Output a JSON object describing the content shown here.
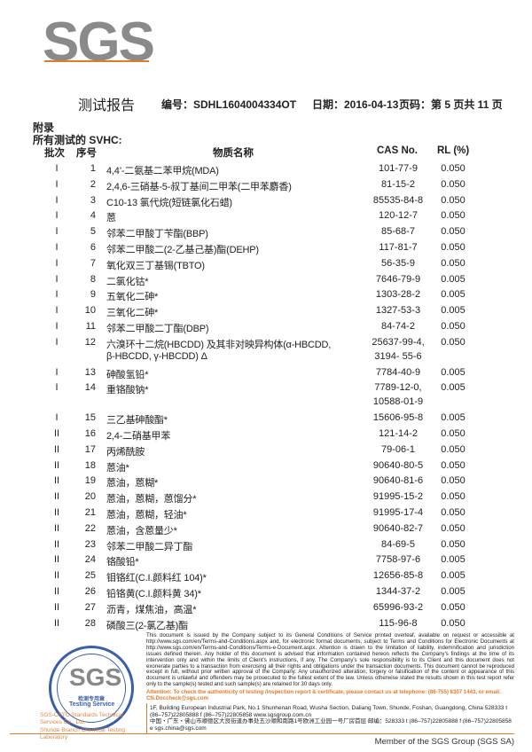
{
  "header": {
    "logo": "SGS",
    "title": "测试报告",
    "report_no": "编号：SDHL1604004334OT",
    "date": "日期：2016-04-13",
    "page": "页码：第 5 页共 11 页"
  },
  "section": {
    "appendix": "附录",
    "subtitle": "所有测试的 SVHC:"
  },
  "table": {
    "columns": [
      "批次",
      "序号",
      "物质名称",
      "CAS No.",
      "RL (%)"
    ],
    "rows": [
      {
        "batch": "I",
        "no": "1",
        "name": [
          "4,4’-二氨基二苯甲烷(MDA)"
        ],
        "cas": [
          "101-77-9"
        ],
        "rl": "0.050"
      },
      {
        "batch": "I",
        "no": "2",
        "name": [
          "2,4,6-三硝基-5-叔丁基间二甲苯(二甲苯麝香)"
        ],
        "cas": [
          "81-15-2"
        ],
        "rl": "0.050"
      },
      {
        "batch": "I",
        "no": "3",
        "name": [
          "C10-13 氯代烷(短链氯化石蜡)"
        ],
        "cas": [
          "85535-84-8"
        ],
        "rl": "0.050"
      },
      {
        "batch": "I",
        "no": "4",
        "name": [
          "蒽"
        ],
        "cas": [
          "120-12-7"
        ],
        "rl": "0.050"
      },
      {
        "batch": "I",
        "no": "5",
        "name": [
          "邻苯二甲酸丁苄酯(BBP)"
        ],
        "cas": [
          "85-68-7"
        ],
        "rl": "0.050"
      },
      {
        "batch": "I",
        "no": "6",
        "name": [
          "邻苯二甲酸二(2-乙基己基)酯(DEHP)"
        ],
        "cas": [
          "117-81-7"
        ],
        "rl": "0.050"
      },
      {
        "batch": "I",
        "no": "7",
        "name": [
          "氧化双三丁基锡(TBTO)"
        ],
        "cas": [
          "56-35-9"
        ],
        "rl": "0.050"
      },
      {
        "batch": "I",
        "no": "8",
        "name": [
          "二氯化钴*"
        ],
        "cas": [
          "7646-79-9"
        ],
        "rl": "0.005"
      },
      {
        "batch": "I",
        "no": "9",
        "name": [
          "五氧化二砷*"
        ],
        "cas": [
          "1303-28-2"
        ],
        "rl": "0.005"
      },
      {
        "batch": "I",
        "no": "10",
        "name": [
          "三氧化二砷*"
        ],
        "cas": [
          "1327-53-3"
        ],
        "rl": "0.005"
      },
      {
        "batch": "I",
        "no": "11",
        "name": [
          "邻苯二甲酸二丁酯(DBP)"
        ],
        "cas": [
          "84-74-2"
        ],
        "rl": "0.050"
      },
      {
        "batch": "I",
        "no": "12",
        "name": [
          "六溴环十二烷(HBCDD) 及其非对映异构体(α-HBCDD,",
          "β-HBCDD, γ-HBCDD) Δ"
        ],
        "cas": [
          "25637-99-4,",
          "3194- 55-6"
        ],
        "rl": "0.050"
      },
      {
        "batch": "I",
        "no": "13",
        "name": [
          "砷酸氢铅*"
        ],
        "cas": [
          "7784-40-9"
        ],
        "rl": "0.005"
      },
      {
        "batch": "I",
        "no": "14",
        "name": [
          "重铬酸钠*"
        ],
        "cas": [
          "7789-12-0,",
          "10588-01-9"
        ],
        "rl": "0.005"
      },
      {
        "batch": "I",
        "no": "15",
        "name": [
          "三乙基砷酸酯*"
        ],
        "cas": [
          "15606-95-8"
        ],
        "rl": "0.005"
      },
      {
        "batch": "II",
        "no": "16",
        "name": [
          "2,4-二硝基甲苯"
        ],
        "cas": [
          "121-14-2"
        ],
        "rl": "0.050"
      },
      {
        "batch": "II",
        "no": "17",
        "name": [
          "丙烯酰胺"
        ],
        "cas": [
          "79-06-1"
        ],
        "rl": "0.050"
      },
      {
        "batch": "II",
        "no": "18",
        "name": [
          "蒽油*"
        ],
        "cas": [
          "90640-80-5"
        ],
        "rl": "0.050"
      },
      {
        "batch": "II",
        "no": "19",
        "name": [
          "蒽油，蒽糊*"
        ],
        "cas": [
          "90640-81-6"
        ],
        "rl": "0.050"
      },
      {
        "batch": "II",
        "no": "20",
        "name": [
          "蒽油，蒽糊，蒽馏分*"
        ],
        "cas": [
          "91995-15-2"
        ],
        "rl": "0.050"
      },
      {
        "batch": "II",
        "no": "21",
        "name": [
          "蒽油，蒽糊，轻油*"
        ],
        "cas": [
          "91995-17-4"
        ],
        "rl": "0.050"
      },
      {
        "batch": "II",
        "no": "22",
        "name": [
          "蒽油，含蒽量少*"
        ],
        "cas": [
          "90640-82-7"
        ],
        "rl": "0.050"
      },
      {
        "batch": "II",
        "no": "23",
        "name": [
          "邻苯二甲酸二异丁酯"
        ],
        "cas": [
          "84-69-5"
        ],
        "rl": "0.050"
      },
      {
        "batch": "II",
        "no": "24",
        "name": [
          "铬酸铅*"
        ],
        "cas": [
          "7758-97-6"
        ],
        "rl": "0.005"
      },
      {
        "batch": "II",
        "no": "25",
        "name": [
          "钼铬红(C.I.颜料红 104)*"
        ],
        "cas": [
          "12656-85-8"
        ],
        "rl": "0.005"
      },
      {
        "batch": "II",
        "no": "26",
        "name": [
          "铅铬黄(C.I.颜料黄 34)*"
        ],
        "cas": [
          "1344-37-2"
        ],
        "rl": "0.005"
      },
      {
        "batch": "II",
        "no": "27",
        "name": [
          "沥青，煤焦油，高温*"
        ],
        "cas": [
          "65996-93-2"
        ],
        "rl": "0.050"
      },
      {
        "batch": "II",
        "no": "28",
        "name": [
          "磷酸三(2-氯乙基)酯"
        ],
        "cas": [
          "115-96-8"
        ],
        "rl": "0.050"
      }
    ]
  },
  "stamp": {
    "logo": "SGS",
    "cn": "检测专用章",
    "en": "Testing Service",
    "company1": "SGS-CSTC Standards Technical Services Co., Ltd.",
    "company2": "Shunde Branch Chemical Testing Laboratory"
  },
  "footer": {
    "disclaimer": "This document is issued by the Company subject to its General Conditions of Service printed overleaf, available on request or accessible at http://www.sgs.com/en/Terms-and-Conditions.aspx and, for electronic format documents, subject to Terms and Conditions for Electronic Documents at http://www.sgs.com/en/Terms-and-Conditions/Terms-e-Document.aspx. Attention is drawn to the limitation of liability, indemnification and jurisdiction issues defined therein. Any holder of this document is advised that information contained hereon reflects the Company's findings at the time of its intervention only and within the limits of Client's instructions, if any. The Company's sole responsibility is to its Client and this document does not exonerate parties to a transaction from exercising all their rights and obligations under the transaction documents. This document cannot be reproduced except in full, without prior written approval of the Company. Any unauthorized alteration, forgery or falsification of the content or appearance of this document is unlawful and offenders may be prosecuted to the fullest extent of the law. Unless otherwise stated the results shown in this test report refer only to the sample(s) tested and such sample(s) are retained for 30 days only.",
    "attention": "Attention: To check the authenticity of testing /inspection report & certificate, please contact us at telephone: (86-755) 8307 1443, or email: CN.Doccheck@sgs.com",
    "address_en": "1F, Building European Industrial Park, No.1 Shunhenan Road, Wusha Section, Daliang Town, Shunde, Foshan, Guangdong, China  528333   t (86–757)22805888   f (86–757)22805858   www.sgsgroup.com.cn",
    "address_cn": "中国・广东・佛山市顺德区大良街道办事处五沙顺和南路1号欧洲工业园一号厂房首层 邮编：528333   t (86–757)22805888   f (86–757)22805858   e sgs.china@sgs.com",
    "member": "Member of the SGS Group (SGS SA)"
  },
  "colors": {
    "accent": "#e07b2a",
    "logo_grey": "#8a8a8a",
    "stamp_blue": "#3a5fa8"
  }
}
